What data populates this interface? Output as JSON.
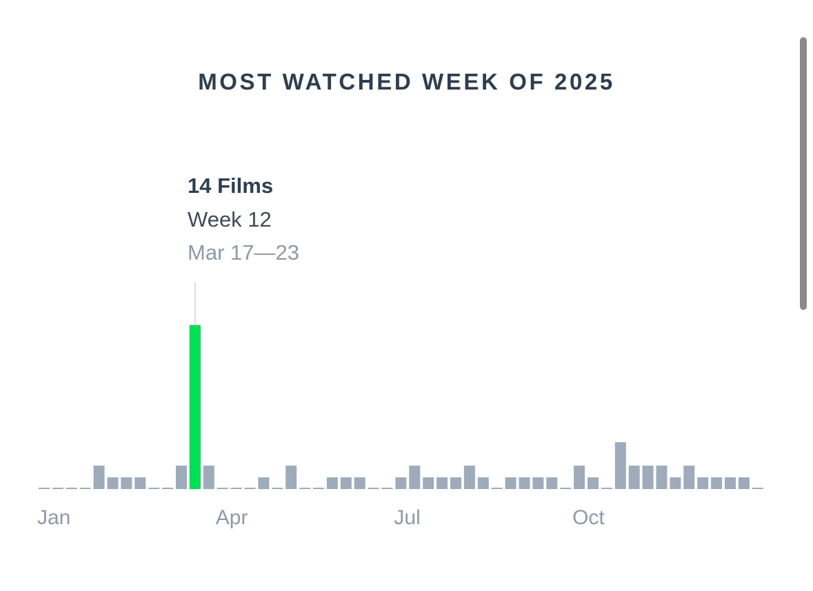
{
  "title": "MOST WATCHED WEEK OF 2025",
  "tooltip": {
    "count": "14 Films",
    "week": "Week 12",
    "range": "Mar 17—23"
  },
  "chart_data": {
    "type": "bar",
    "title": "MOST WATCHED WEEK OF 2025",
    "xlabel": "",
    "ylabel": "",
    "x_tick_labels": [
      "Jan",
      "Apr",
      "Jul",
      "Oct"
    ],
    "categories": [
      1,
      2,
      3,
      4,
      5,
      6,
      7,
      8,
      9,
      10,
      11,
      12,
      13,
      14,
      15,
      16,
      17,
      18,
      19,
      20,
      21,
      22,
      23,
      24,
      25,
      26,
      27,
      28,
      29,
      30,
      31,
      32,
      33,
      34,
      35,
      36,
      37,
      38,
      39,
      40,
      41,
      42,
      43,
      44,
      45,
      46,
      47,
      48,
      49,
      50,
      51,
      52,
      53
    ],
    "values": [
      0,
      0,
      0,
      0,
      2,
      1,
      1,
      1,
      0,
      0,
      2,
      14,
      2,
      0,
      0,
      0,
      1,
      0,
      2,
      0,
      0,
      1,
      1,
      1,
      0,
      0,
      1,
      2,
      1,
      1,
      1,
      2,
      1,
      0,
      1,
      1,
      1,
      1,
      0,
      2,
      1,
      0,
      4,
      2,
      2,
      2,
      1,
      2,
      1,
      1,
      1,
      1,
      0
    ],
    "highlight_index": 11,
    "ylim": [
      0,
      14
    ],
    "grid": false,
    "legend": "none",
    "colors": {
      "bar": "#9dabbb",
      "highlight": "#00e054",
      "guide": "#dddddd",
      "tick_label": "#8c9aab"
    }
  }
}
